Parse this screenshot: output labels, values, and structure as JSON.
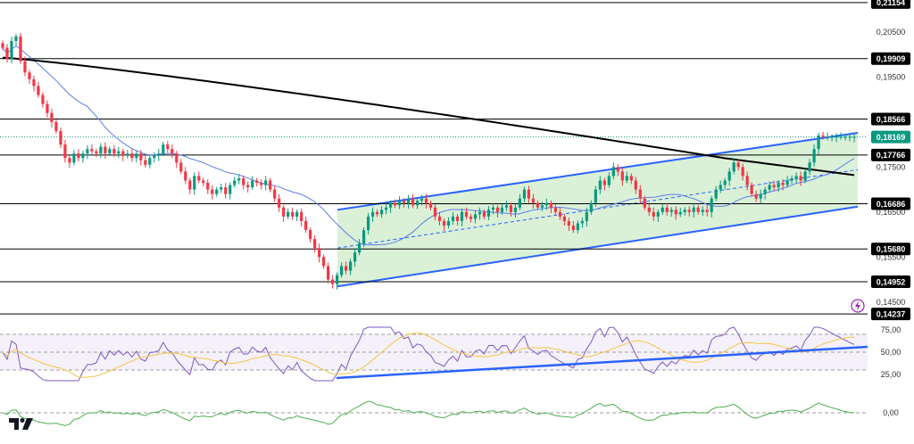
{
  "chart_data": {
    "type": "candlestick",
    "symbol_logo": "TV",
    "price_axis": {
      "min": 0.1418,
      "max": 0.2121,
      "ticks": [
        "0,20500",
        "0,19500",
        "0,17500",
        "0,16500",
        "0,15500",
        "0,14500"
      ],
      "tick_values": [
        0.205,
        0.195,
        0.175,
        0.165,
        0.155,
        0.145
      ]
    },
    "levels": [
      {
        "label": "0,21154",
        "value": 0.21154
      },
      {
        "label": "0,19909",
        "value": 0.19909
      },
      {
        "label": "0,18566",
        "value": 0.18566
      },
      {
        "label": "0,17766",
        "value": 0.17766
      },
      {
        "label": "0,16686",
        "value": 0.16686
      },
      {
        "label": "0,15680",
        "value": 0.1568
      },
      {
        "label": "0,14952",
        "value": 0.14952
      },
      {
        "label": "0,14237",
        "value": 0.14237
      }
    ],
    "current_price": {
      "label": "0,18169",
      "value": 0.18169
    },
    "candles_count": 192,
    "candles_close": [
      0.2015,
      0.199,
      0.203,
      0.204,
      0.1985,
      0.196,
      0.1945,
      0.193,
      0.191,
      0.189,
      0.187,
      0.185,
      0.183,
      0.18,
      0.177,
      0.176,
      0.178,
      0.177,
      0.178,
      0.179,
      0.1785,
      0.178,
      0.1795,
      0.178,
      0.179,
      0.178,
      0.1785,
      0.1775,
      0.178,
      0.177,
      0.178,
      0.1765,
      0.1755,
      0.177,
      0.1775,
      0.178,
      0.18,
      0.179,
      0.178,
      0.176,
      0.174,
      0.172,
      0.17,
      0.173,
      0.172,
      0.1715,
      0.17,
      0.169,
      0.17,
      0.1705,
      0.169,
      0.171,
      0.172,
      0.1725,
      0.171,
      0.1705,
      0.172,
      0.1715,
      0.171,
      0.172,
      0.17,
      0.168,
      0.166,
      0.164,
      0.165,
      0.164,
      0.165,
      0.163,
      0.161,
      0.159,
      0.157,
      0.155,
      0.153,
      0.15,
      0.149,
      0.151,
      0.153,
      0.152,
      0.154,
      0.156,
      0.158,
      0.161,
      0.164,
      0.165,
      0.1645,
      0.1655,
      0.166,
      0.167,
      0.1665,
      0.1675,
      0.167,
      0.168,
      0.1665,
      0.1675,
      0.168,
      0.167,
      0.166,
      0.164,
      0.163,
      0.162,
      0.163,
      0.164,
      0.163,
      0.165,
      0.164,
      0.1635,
      0.1645,
      0.165,
      0.164,
      0.1655,
      0.166,
      0.165,
      0.166,
      0.1665,
      0.165,
      0.166,
      0.168,
      0.17,
      0.168,
      0.167,
      0.166,
      0.1665,
      0.167,
      0.166,
      0.165,
      0.164,
      0.163,
      0.162,
      0.161,
      0.1625,
      0.163,
      0.165,
      0.167,
      0.17,
      0.172,
      0.171,
      0.173,
      0.175,
      0.174,
      0.172,
      0.173,
      0.172,
      0.17,
      0.168,
      0.166,
      0.165,
      0.164,
      0.165,
      0.166,
      0.165,
      0.1655,
      0.1645,
      0.165,
      0.1655,
      0.165,
      0.166,
      0.165,
      0.1655,
      0.165,
      0.168,
      0.17,
      0.171,
      0.172,
      0.174,
      0.176,
      0.175,
      0.173,
      0.171,
      0.169,
      0.168,
      0.169,
      0.17,
      0.171,
      0.1705,
      0.1715,
      0.171,
      0.172,
      0.1725,
      0.173,
      0.172,
      0.174,
      0.176,
      0.179,
      0.182,
      0.1817,
      0.1817,
      0.1817,
      0.1817,
      0.1817,
      0.1817,
      0.1817,
      0.1817
    ]
  },
  "rsi_axis": {
    "ticks": [
      "75,00",
      "50,00",
      "25,00"
    ],
    "tick_values": [
      75,
      50,
      25
    ]
  },
  "macd_axis": {
    "ticks": [
      "0,00"
    ],
    "tick_values": [
      0
    ]
  },
  "colors": {
    "up": "#089981",
    "down": "#f23645",
    "channel_fill": "#d4edd0",
    "channel_line": "#2962ff",
    "ma_black": "#000000",
    "ma_blue": "#5b7fe8",
    "rsi": "#7e57c2",
    "rsi_ma": "#f5c542",
    "rsi_band": "#ede7f6",
    "macd": "#4caf50",
    "current_badge": "#089981"
  }
}
